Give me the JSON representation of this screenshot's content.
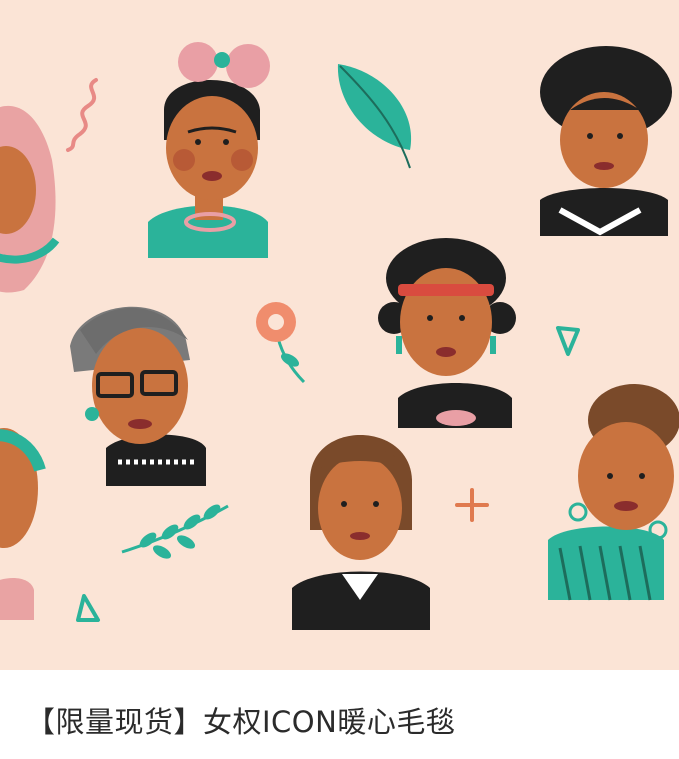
{
  "product": {
    "title": "【限量现货】女权ICON暖心毛毯"
  },
  "colors": {
    "background": "#fbe4d6",
    "skin": "#c9733f",
    "teal": "#2bb39a",
    "hair_dark": "#1f1f1f",
    "blush": "#b85a36",
    "pink": "#e99fa5",
    "title_text": "#2b2b2b"
  },
  "icons": [
    "leaf-icon",
    "flower-icon",
    "sprig-icon",
    "triangle-icon",
    "plus-icon",
    "squiggle-icon"
  ]
}
